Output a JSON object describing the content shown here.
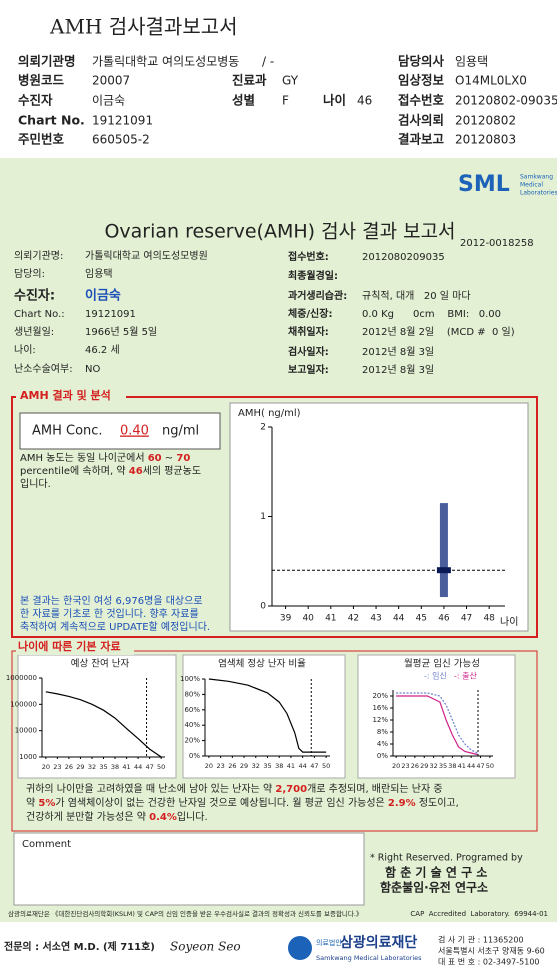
{
  "header": {
    "title": "AMH 검사결과보고서",
    "rows": [
      [
        "의뢰기관명",
        "가톨릭대학교 여의도성모병동",
        "/ -",
        "담당의사",
        "임용택"
      ],
      [
        "병원코드",
        "20007",
        "진료과",
        "GY",
        "임상정보",
        "O14ML0LX0"
      ],
      [
        "수진자",
        "이금숙",
        "성별",
        "F",
        "나이",
        "46",
        "접수번호",
        "20120802-09035"
      ],
      [
        "Chart No.",
        "19121091",
        "검사의뢰",
        "20120802"
      ],
      [
        "주민번호",
        "660505-2",
        "결과보고",
        "20120803"
      ]
    ]
  },
  "report": {
    "logo": "SML",
    "logo_sub": [
      "Samkwang",
      "Medical",
      "Laboratories"
    ],
    "title": "Ovarian reserve(AMH) 검사 결과 보고서",
    "number": "2012-0018258",
    "info_left": [
      [
        "의뢰기관명:",
        "가톨릭대학교 여의도성모병원"
      ],
      [
        "담당의:",
        "임용택"
      ],
      [
        "수진자:",
        "이금숙"
      ],
      [
        "Chart No.:",
        "19121091"
      ],
      [
        "생년월일:",
        "1966년 5월 5일"
      ],
      [
        "나이:",
        "46.2 세"
      ],
      [
        "난소수술여부:",
        "NO"
      ]
    ],
    "info_right": [
      [
        "접수번호:",
        "2012080209035"
      ],
      [
        "최종월경일:",
        ""
      ],
      [
        "과거생리습관:",
        "규칙적, 대개   20 일 마다"
      ],
      [
        "체중/신장:",
        "0.0 Kg      0cm    BMI:   0.00"
      ],
      [
        "채취일자:",
        "2012년 8월 2일    (MCD #  0 일)"
      ],
      [
        "검사일자:",
        "2012년 8월 3일"
      ],
      [
        "보고일자:",
        "2012년 8월 3일"
      ]
    ]
  },
  "result": {
    "section_label": "AMH 결과 및 분석",
    "conc_label": "AMH Conc.",
    "conc_value": "0.40",
    "conc_unit": "ng/ml",
    "interpretation": [
      [
        {
          "text": "AMH 농도는 동일 나이군에서 ",
          "highlight": false
        },
        {
          "text": "60",
          "highlight": true
        },
        {
          "text": " ~ ",
          "highlight": false
        },
        {
          "text": "70",
          "highlight": true
        }
      ],
      [
        {
          "text": "percentile에 속하며, 약 ",
          "highlight": false
        },
        {
          "text": "46",
          "highlight": true
        },
        {
          "text": "세의 평균농도",
          "highlight": false
        }
      ],
      [
        {
          "text": "입니다.",
          "highlight": false
        }
      ]
    ],
    "note": [
      "본 결과는 한국인 여성 6,976명을 대상으로",
      "한 자료를 기초로 한 것입니다. 향후 자료를",
      "축적하여 계속적으로 UPDATE할 예정입니다."
    ]
  },
  "amh_chart": {
    "ylabel": "AMH( ng/ml)",
    "xlabel": "나이",
    "ylim": [
      0,
      2
    ],
    "yticks": [
      0,
      1,
      2
    ],
    "xlim": [
      38.4,
      48.7
    ],
    "xticks": [
      39,
      40,
      41,
      42,
      43,
      44,
      45,
      46,
      47,
      48
    ],
    "patient_age": 46,
    "patient_value": 0.4,
    "range": [
      0.1,
      1.15
    ]
  },
  "basic": {
    "section_label": "나이에 따른 기본 자료",
    "charts": [
      {
        "title": "예상 잔여 난자",
        "log": true,
        "ylim": [
          1000,
          1000000
        ],
        "yticks": [
          1000,
          10000,
          100000,
          1000000
        ],
        "xlim": [
          19,
          51
        ],
        "xticks": [
          20,
          23,
          26,
          29,
          32,
          35,
          38,
          41,
          44,
          47,
          50
        ],
        "age_marker": 46.2,
        "series": [
          {
            "color": "#000000",
            "dash": false,
            "x": [
              20,
              23,
              26,
              29,
              32,
              35,
              38,
              41,
              44,
              47,
              50
            ],
            "values": [
              300000,
              250000,
              200000,
              150000,
              100000,
              60000,
              30000,
              12000,
              5000,
              2000,
              1000
            ]
          }
        ]
      },
      {
        "title": "염색체 정상 난자 비율",
        "log": false,
        "ylim": [
          0,
          100
        ],
        "yticks": [
          {
            "value": 0,
            "label": "0%"
          },
          {
            "value": 20,
            "label": "20%"
          },
          {
            "value": 40,
            "label": "40%"
          },
          {
            "value": 60,
            "label": "60%"
          },
          {
            "value": 80,
            "label": "80%"
          },
          {
            "value": 100,
            "label": "100%"
          }
        ],
        "xlim": [
          19,
          51
        ],
        "xticks": [
          20,
          23,
          26,
          29,
          32,
          35,
          38,
          41,
          44,
          47,
          50
        ],
        "age_marker": 46.2,
        "series": [
          {
            "color": "#000000",
            "dash": false,
            "x": [
              20,
              25,
              30,
              35,
              38,
              40,
              42,
              43,
              44,
              50
            ],
            "values": [
              100,
              97,
              92,
              82,
              70,
              55,
              30,
              10,
              5,
              5
            ]
          }
        ]
      },
      {
        "title": "월평균 임신 가능성",
        "log": false,
        "ylim": [
          0,
          22
        ],
        "yticks": [
          {
            "value": 0,
            "label": "0%"
          },
          {
            "value": 4,
            "label": "4%"
          },
          {
            "value": 8,
            "label": "8%"
          },
          {
            "value": 12,
            "label": "12%"
          },
          {
            "value": 16,
            "label": "16%"
          },
          {
            "value": 20,
            "label": "20%"
          }
        ],
        "xlim": [
          19,
          51
        ],
        "xticks": [
          20,
          23,
          26,
          29,
          32,
          35,
          38,
          41,
          44,
          47,
          50
        ],
        "age_marker": 46.2,
        "legend": [
          "-: 임신",
          "-: 출산"
        ],
        "series": [
          {
            "color": "#6a7fd0",
            "dash": true,
            "x": [
              20,
              30,
              34,
              36,
              38,
              40,
              42,
              44,
              46
            ],
            "values": [
              21,
              21,
              20,
              17,
              12,
              7,
              4,
              2,
              1
            ]
          },
          {
            "color": "#d0208a",
            "dash": false,
            "x": [
              20,
              30,
              34,
              36,
              38,
              40,
              42,
              44,
              46
            ],
            "values": [
              20,
              20,
              18,
              12,
              7,
              3,
              1.5,
              1,
              0.5
            ]
          }
        ]
      }
    ]
  },
  "summary": [
    [
      {
        "text": "귀하의 나이만을 고려하였을 때 난소에 남아 있는 난자는 약 ",
        "highlight": false
      },
      {
        "text": "2,700",
        "highlight": true
      },
      {
        "text": "개로 추정되며, 배란되는 난자 중",
        "highlight": false
      }
    ],
    [
      {
        "text": "약 ",
        "highlight": false
      },
      {
        "text": "5%",
        "highlight": true
      },
      {
        "text": "가 염색체이상이 없는 건강한 난자일 것으로 예상됩니다. 월 평균 임신 가능성은 ",
        "highlight": false
      },
      {
        "text": "2.9%",
        "highlight": true
      },
      {
        "text": " 정도이고,",
        "highlight": false
      }
    ],
    [
      {
        "text": "건강하게 분만할 가능성은 약 ",
        "highlight": false
      },
      {
        "text": "0.4%",
        "highlight": true
      },
      {
        "text": "입니다.",
        "highlight": false
      }
    ]
  ],
  "comment": {
    "label": "Comment"
  },
  "credits": [
    "* Right Reserved. Programed by",
    "함 춘 기 술 연 구 소",
    "함춘불임·유전 연구소"
  ],
  "footer": {
    "certification": "삼광의료재단은 《대한진단검사의학회(KSLM) 및 CAP의 신임 인증을 받은 우수검사실로 결과의 정확성과 신뢰도를 보증합니다.》",
    "cap": "CAP  Accredited  Laboratory.  69944-01",
    "doctor": "전문의 : 서소연 M.D. (제 711호)",
    "signature": "Soyeon Seo",
    "org": "삼광의료재단",
    "org_en": "Samkwang Medical Laboratories",
    "org_prefix": "의료법인",
    "contact": [
      "검 사 기 관 : 11365200",
      "서울특별시 서초구 양재동 9-60",
      "대 표 번 호 : 02-3497-5100"
    ]
  }
}
